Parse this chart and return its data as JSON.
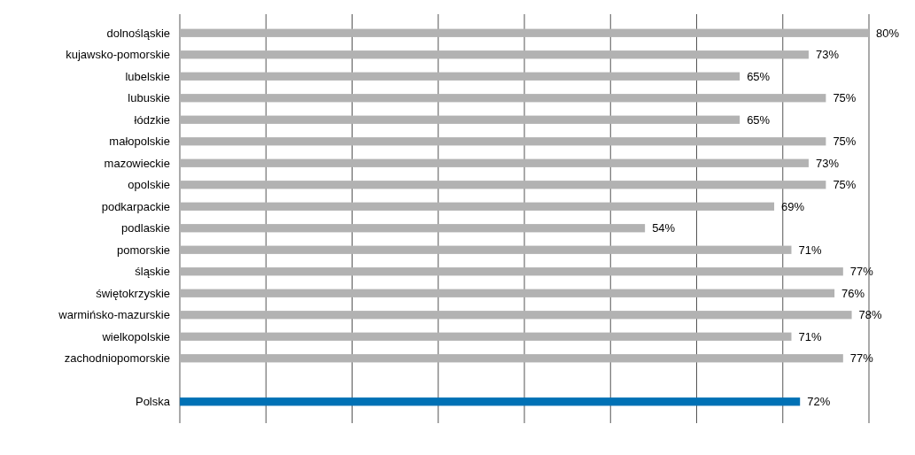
{
  "chart_data": {
    "type": "bar",
    "orientation": "horizontal",
    "categories": [
      "dolnośląskie",
      "kujawsko-pomorskie",
      "lubelskie",
      "lubuskie",
      "łódzkie",
      "małopolskie",
      "mazowieckie",
      "opolskie",
      "podkarpackie",
      "podlaskie",
      "pomorskie",
      "śląskie",
      "świętokrzyskie",
      "warmińsko-mazurskie",
      "wielkopolskie",
      "zachodniopomorskie",
      null,
      "Polska"
    ],
    "values": [
      80,
      73,
      65,
      75,
      65,
      75,
      73,
      75,
      69,
      54,
      71,
      77,
      76,
      78,
      71,
      77,
      null,
      72
    ],
    "colors": [
      "#b2b2b2",
      "#b2b2b2",
      "#b2b2b2",
      "#b2b2b2",
      "#b2b2b2",
      "#b2b2b2",
      "#b2b2b2",
      "#b2b2b2",
      "#b2b2b2",
      "#b2b2b2",
      "#b2b2b2",
      "#b2b2b2",
      "#b2b2b2",
      "#b2b2b2",
      "#b2b2b2",
      "#b2b2b2",
      null,
      "#0071b5"
    ],
    "value_labels": [
      "80%",
      "73%",
      "65%",
      "75%",
      "65%",
      "75%",
      "73%",
      "75%",
      "69%",
      "54%",
      "71%",
      "77%",
      "76%",
      "78%",
      "71%",
      "77%",
      null,
      "72%"
    ],
    "xlim": [
      0,
      80
    ],
    "xticks": [
      {
        "value": 0,
        "label": null
      },
      {
        "value": 10,
        "label": null
      },
      {
        "value": 20,
        "label": null
      },
      {
        "value": 30,
        "label": null
      },
      {
        "value": 40,
        "label": null
      },
      {
        "value": 50,
        "label": null
      },
      {
        "value": 60,
        "label": null
      },
      {
        "value": 70,
        "label": null
      },
      {
        "value": 80,
        "label": null
      }
    ],
    "grid": "x",
    "tick_labels": "y"
  }
}
